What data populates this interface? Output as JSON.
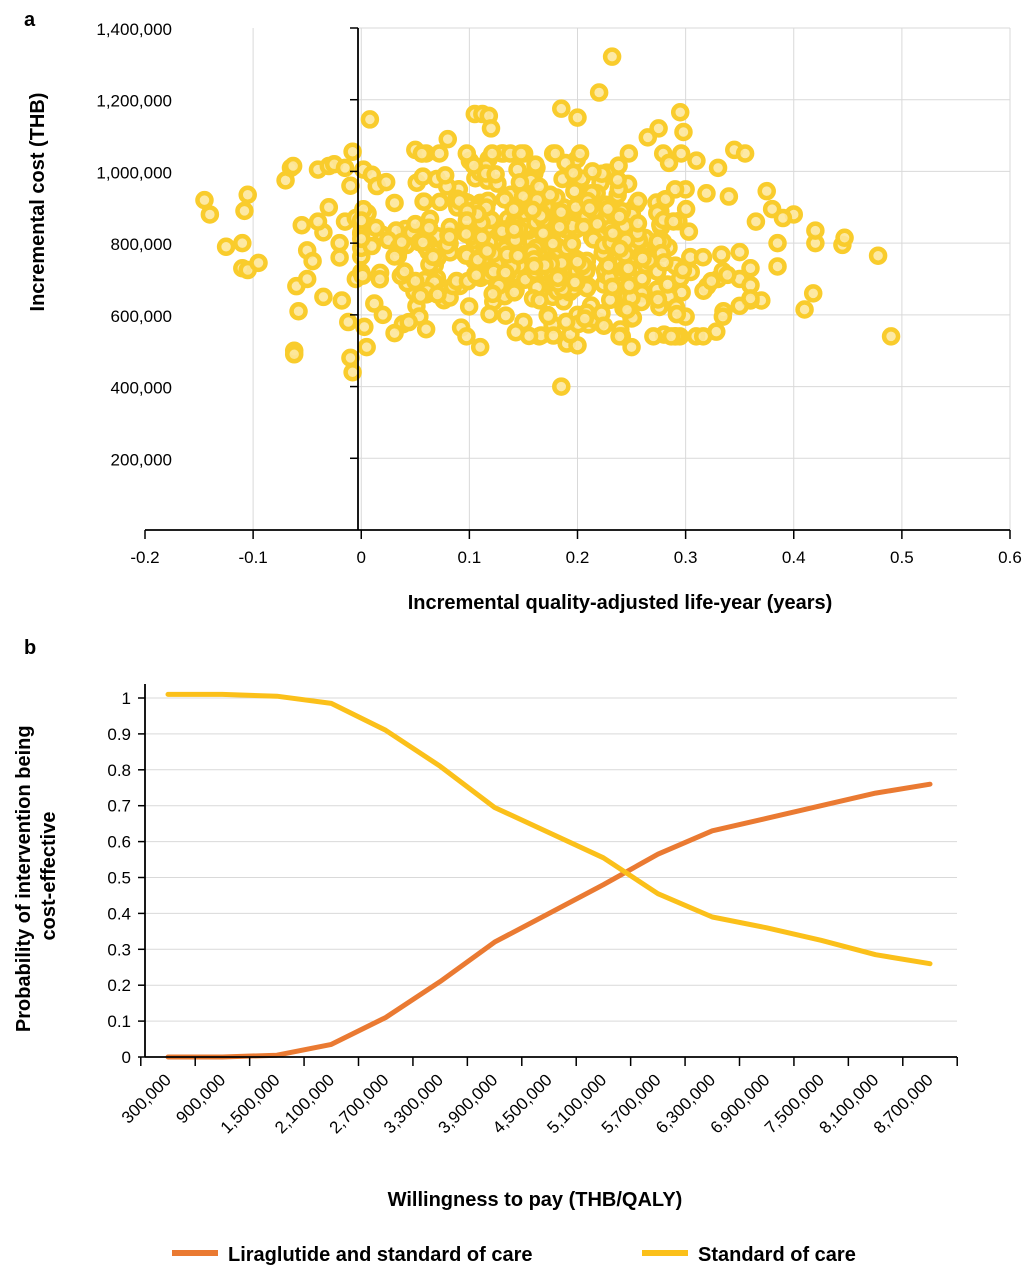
{
  "panels": {
    "a": "a",
    "b": "b"
  },
  "colors": {
    "scatter_fill": "#f9cc2c",
    "scatter_stroke": "#f5b800",
    "series_liraglutide": "#ea7a32",
    "series_standard": "#fbc01a",
    "grid": "#d9d9d9",
    "axis": "#000000"
  },
  "chart_data": [
    {
      "type": "scatter",
      "xlabel": "Incremental quality-adjusted life-year (years)",
      "ylabel": "Incremental cost (THB)",
      "xlim": [
        -0.2,
        0.6
      ],
      "ylim": [
        0,
        1400000
      ],
      "x_ticks": [
        "-0.2",
        "-0.1",
        "0",
        "0.1",
        "0.2",
        "0.3",
        "0.4",
        "0.5",
        "0.6"
      ],
      "y_ticks": [
        "200,000",
        "400,000",
        "600,000",
        "800,000",
        "1,000,000",
        "1,200,000",
        "1,400,000"
      ],
      "grid": "vertical and horizontal",
      "points": [
        [
          -0.145,
          920000
        ],
        [
          -0.14,
          880000
        ],
        [
          -0.125,
          790000
        ],
        [
          -0.11,
          800000
        ],
        [
          -0.11,
          730000
        ],
        [
          -0.105,
          725000
        ],
        [
          -0.108,
          890000
        ],
        [
          -0.105,
          935000
        ],
        [
          -0.095,
          745000
        ],
        [
          -0.07,
          975000
        ],
        [
          -0.065,
          1010000
        ],
        [
          -0.063,
          1015000
        ],
        [
          -0.062,
          500000
        ],
        [
          -0.062,
          490000
        ],
        [
          -0.06,
          680000
        ],
        [
          -0.058,
          610000
        ],
        [
          -0.055,
          850000
        ],
        [
          -0.05,
          780000
        ],
        [
          -0.045,
          750000
        ],
        [
          -0.04,
          1005000
        ],
        [
          -0.035,
          830000
        ],
        [
          -0.03,
          1015000
        ],
        [
          -0.025,
          1020000
        ],
        [
          -0.02,
          800000
        ],
        [
          -0.015,
          1010000
        ],
        [
          -0.01,
          960000
        ],
        [
          -0.008,
          1055000
        ],
        [
          -0.01,
          480000
        ],
        [
          -0.008,
          440000
        ],
        [
          -0.005,
          700000
        ],
        [
          -0.012,
          580000
        ],
        [
          -0.018,
          640000
        ],
        [
          0.002,
          1005000
        ],
        [
          0.008,
          1145000
        ],
        [
          0.005,
          510000
        ],
        [
          -0.03,
          900000
        ],
        [
          -0.04,
          860000
        ],
        [
          -0.05,
          700000
        ],
        [
          -0.02,
          760000
        ],
        [
          -0.015,
          860000
        ],
        [
          -0.005,
          870000
        ],
        [
          -0.035,
          650000
        ],
        [
          0.05,
          1060000
        ],
        [
          0.08,
          1090000
        ],
        [
          0.105,
          1160000
        ],
        [
          0.112,
          1160000
        ],
        [
          0.118,
          1155000
        ],
        [
          0.12,
          1120000
        ],
        [
          0.13,
          1050000
        ],
        [
          0.185,
          1175000
        ],
        [
          0.2,
          1150000
        ],
        [
          0.22,
          1220000
        ],
        [
          0.232,
          1320000
        ],
        [
          0.265,
          1095000
        ],
        [
          0.275,
          1120000
        ],
        [
          0.295,
          1165000
        ],
        [
          0.298,
          1110000
        ],
        [
          0.31,
          1030000
        ],
        [
          0.33,
          1010000
        ],
        [
          0.345,
          1060000
        ],
        [
          0.355,
          1050000
        ],
        [
          0.375,
          945000
        ],
        [
          0.38,
          895000
        ],
        [
          0.4,
          880000
        ],
        [
          0.385,
          800000
        ],
        [
          0.385,
          735000
        ],
        [
          0.37,
          640000
        ],
        [
          0.36,
          640000
        ],
        [
          0.35,
          625000
        ],
        [
          0.335,
          610000
        ],
        [
          0.41,
          615000
        ],
        [
          0.418,
          660000
        ],
        [
          0.42,
          800000
        ],
        [
          0.42,
          835000
        ],
        [
          0.445,
          795000
        ],
        [
          0.447,
          815000
        ],
        [
          0.478,
          765000
        ],
        [
          0.49,
          540000
        ],
        [
          0.185,
          400000
        ],
        [
          0.25,
          510000
        ],
        [
          0.19,
          520000
        ],
        [
          0.11,
          510000
        ],
        [
          0.28,
          545000
        ],
        [
          0.29,
          540000
        ],
        [
          0.3,
          595000
        ],
        [
          0.22,
          580000
        ],
        [
          0.15,
          580000
        ],
        [
          0.06,
          560000
        ],
        [
          0.02,
          600000
        ],
        [
          0.2,
          515000
        ],
        [
          0.365,
          860000
        ],
        [
          0.36,
          730000
        ],
        [
          0.35,
          775000
        ],
        [
          0.39,
          870000
        ],
        [
          0.33,
          700000
        ],
        [
          0.35,
          700000
        ],
        [
          0.2,
          600000
        ],
        [
          0.25,
          590000
        ],
        [
          0.28,
          920000
        ],
        [
          0.3,
          950000
        ],
        [
          0.34,
          930000
        ],
        [
          0.32,
          680000
        ]
      ],
      "cluster": {
        "count": 520,
        "x_center": 0.16,
        "x_sd": 0.085,
        "x_range": [
          0.0,
          0.36
        ],
        "y_center": 800000,
        "y_sd": 120000,
        "y_range": [
          540000,
          1050000
        ]
      }
    },
    {
      "type": "line",
      "xlabel": "Willingness to pay (THB/QALY)",
      "ylabel": "Probability of intervention being cost-effective",
      "ylim": [
        0,
        1
      ],
      "x_ticks": [
        "300,000",
        "900,000",
        "1,500,000",
        "2,100,000",
        "2,700,000",
        "3,300,000",
        "3,900,000",
        "4,500,000",
        "5,100,000",
        "5,700,000",
        "6,300,000",
        "6,900,000",
        "7,500,000",
        "8,100,000",
        "8,700,000"
      ],
      "y_ticks": [
        "0",
        "0.1",
        "0.2",
        "0.3",
        "0.4",
        "0.5",
        "0.6",
        "0.7",
        "0.8",
        "0.9",
        "1"
      ],
      "x": [
        300000,
        900000,
        1500000,
        2100000,
        2700000,
        3300000,
        3900000,
        4500000,
        5100000,
        5700000,
        6300000,
        6900000,
        7500000,
        8100000,
        8700000
      ],
      "legend_position": "bottom",
      "series": [
        {
          "name": "Liraglutide and standard of care",
          "values": [
            0.0,
            0.0,
            0.005,
            0.035,
            0.11,
            0.21,
            0.32,
            0.4,
            0.48,
            0.565,
            0.63,
            0.665,
            0.7,
            0.735,
            0.76
          ]
        },
        {
          "name": "Standard of care",
          "values": [
            1.01,
            1.01,
            1.005,
            0.985,
            0.91,
            0.81,
            0.695,
            0.625,
            0.555,
            0.455,
            0.39,
            0.36,
            0.325,
            0.285,
            0.26
          ]
        }
      ]
    }
  ]
}
